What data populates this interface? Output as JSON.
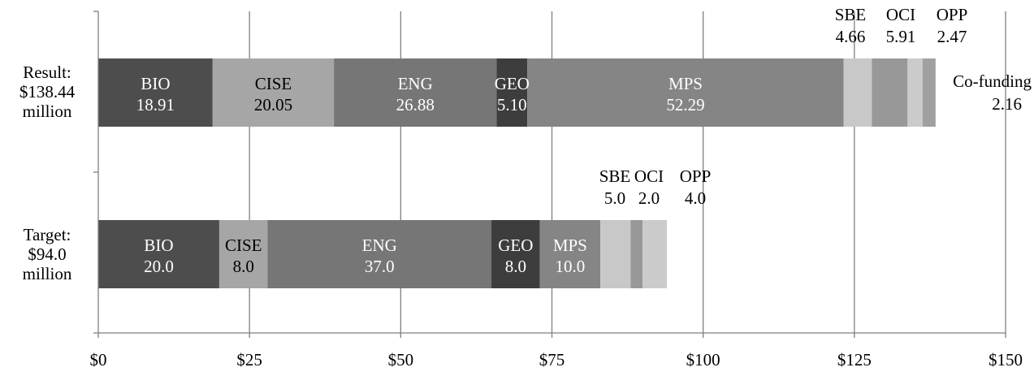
{
  "chart_data": {
    "type": "bar",
    "orientation": "horizontal",
    "stacked": true,
    "grid": true,
    "xlim": [
      0,
      150
    ],
    "x_ticks": [
      "$0",
      "$25",
      "$50",
      "$75",
      "$100",
      "$125",
      "$150"
    ],
    "x_tick_values": [
      0,
      25,
      50,
      75,
      100,
      125,
      150
    ],
    "categories": [
      {
        "lines": [
          "Result:",
          "$138.44",
          "million"
        ],
        "total": 138.44
      },
      {
        "lines": [
          "Target:",
          "$94.0",
          "million"
        ],
        "total": 94.0
      }
    ],
    "series": [
      {
        "name": "BIO",
        "color": "#4d4d4d",
        "text_color": "#ffffff",
        "values": [
          18.91,
          20.0
        ],
        "value_labels": [
          "18.91",
          "20.0"
        ]
      },
      {
        "name": "CISE",
        "color": "#a6a6a6",
        "text_color": "#000000",
        "values": [
          20.05,
          8.0
        ],
        "value_labels": [
          "20.05",
          "8.0"
        ]
      },
      {
        "name": "ENG",
        "color": "#767676",
        "text_color": "#ffffff",
        "values": [
          26.88,
          37.0
        ],
        "value_labels": [
          "26.88",
          "37.0"
        ]
      },
      {
        "name": "GEO",
        "color": "#3d3d3d",
        "text_color": "#ffffff",
        "values": [
          5.1,
          8.0
        ],
        "value_labels": [
          "5.10",
          "8.0"
        ]
      },
      {
        "name": "MPS",
        "color": "#858585",
        "text_color": "#ffffff",
        "values": [
          52.29,
          10.0
        ],
        "value_labels": [
          "52.29",
          "10.0"
        ]
      },
      {
        "name": "SBE",
        "color": "#c8c8c8",
        "text_color": "#000000",
        "values": [
          4.66,
          5.0
        ],
        "value_labels": [
          "4.66",
          "5.0"
        ]
      },
      {
        "name": "OCI",
        "color": "#989898",
        "text_color": "#000000",
        "values": [
          5.91,
          2.0
        ],
        "value_labels": [
          "5.91",
          "2.0"
        ]
      },
      {
        "name": "OPP",
        "color": "#cbcbcb",
        "text_color": "#000000",
        "values": [
          2.47,
          4.0
        ],
        "value_labels": [
          "2.47",
          "4.0"
        ]
      },
      {
        "name": "Co-funding",
        "color": "#a0a0a0",
        "text_color": "#000000",
        "values": [
          2.16,
          0
        ],
        "value_labels": [
          "2.16",
          ""
        ]
      }
    ]
  }
}
